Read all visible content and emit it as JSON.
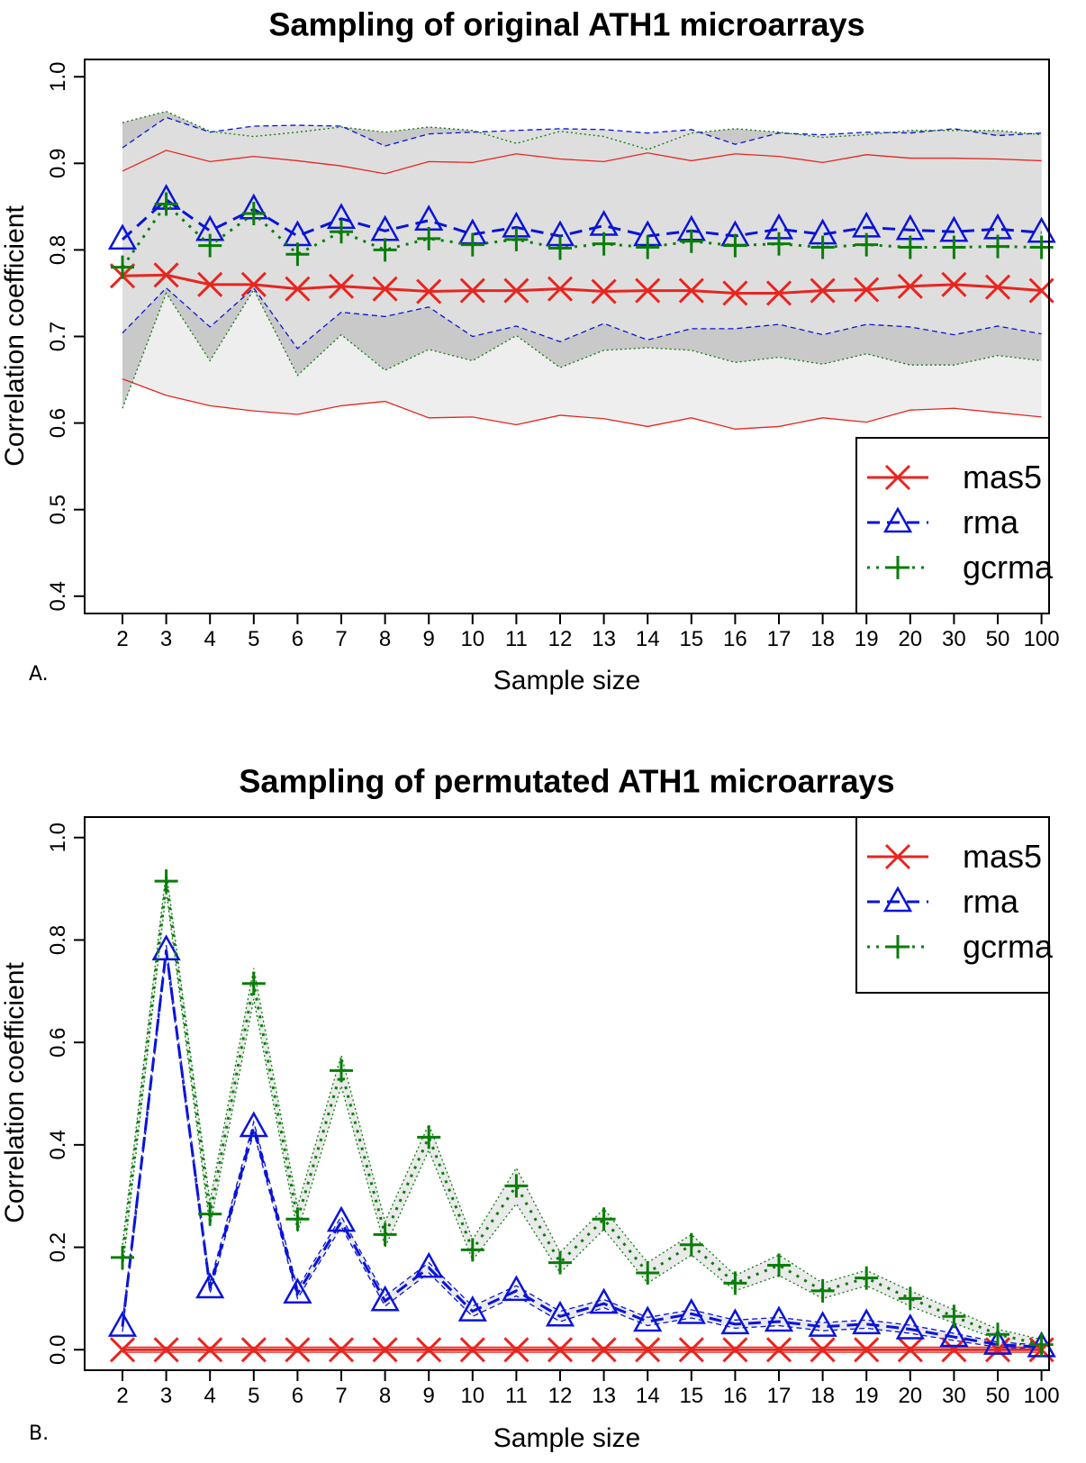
{
  "chart_data": [
    {
      "panel_label": "A.",
      "type": "line",
      "title": "Sampling of original ATH1 microarrays",
      "xlabel": "Sample size",
      "ylabel": "Correlation coefficient",
      "categories": [
        "2",
        "3",
        "4",
        "5",
        "6",
        "7",
        "8",
        "9",
        "10",
        "11",
        "12",
        "13",
        "14",
        "15",
        "16",
        "17",
        "18",
        "19",
        "20",
        "30",
        "50",
        "100"
      ],
      "ylim": [
        0.38,
        1.02
      ],
      "yticks": [
        "0.4",
        "0.5",
        "0.6",
        "0.7",
        "0.8",
        "0.9",
        "1.0"
      ],
      "legend_position": "bottom-right",
      "series": [
        {
          "name": "mas5",
          "color": "#e8251f",
          "style": "solid",
          "marker": "x",
          "values": [
            0.77,
            0.771,
            0.76,
            0.76,
            0.755,
            0.758,
            0.755,
            0.752,
            0.753,
            0.753,
            0.755,
            0.752,
            0.753,
            0.753,
            0.75,
            0.75,
            0.753,
            0.754,
            0.758,
            0.76,
            0.757,
            0.753
          ],
          "upper": [
            0.891,
            0.915,
            0.902,
            0.908,
            0.903,
            0.897,
            0.888,
            0.902,
            0.901,
            0.911,
            0.905,
            0.902,
            0.912,
            0.903,
            0.911,
            0.908,
            0.901,
            0.91,
            0.906,
            0.906,
            0.905,
            0.903
          ],
          "lower": [
            0.651,
            0.632,
            0.62,
            0.614,
            0.61,
            0.62,
            0.625,
            0.606,
            0.607,
            0.598,
            0.609,
            0.605,
            0.596,
            0.606,
            0.593,
            0.596,
            0.606,
            0.601,
            0.615,
            0.617,
            0.612,
            0.607
          ]
        },
        {
          "name": "rma",
          "color": "#0a14d8",
          "style": "dashed",
          "marker": "triangle",
          "values": [
            0.812,
            0.858,
            0.822,
            0.847,
            0.816,
            0.836,
            0.822,
            0.834,
            0.818,
            0.826,
            0.816,
            0.828,
            0.816,
            0.822,
            0.816,
            0.824,
            0.818,
            0.826,
            0.823,
            0.821,
            0.824,
            0.82
          ],
          "upper": [
            0.918,
            0.953,
            0.936,
            0.943,
            0.944,
            0.943,
            0.92,
            0.934,
            0.936,
            0.938,
            0.94,
            0.939,
            0.935,
            0.939,
            0.922,
            0.935,
            0.933,
            0.936,
            0.935,
            0.94,
            0.932,
            0.935
          ],
          "lower": [
            0.704,
            0.756,
            0.711,
            0.756,
            0.686,
            0.728,
            0.723,
            0.734,
            0.7,
            0.712,
            0.694,
            0.715,
            0.696,
            0.709,
            0.709,
            0.714,
            0.702,
            0.714,
            0.711,
            0.702,
            0.712,
            0.703
          ]
        },
        {
          "name": "gcrma",
          "color": "#0a7d0a",
          "style": "dotted",
          "marker": "plus",
          "values": [
            0.78,
            0.853,
            0.805,
            0.842,
            0.795,
            0.821,
            0.8,
            0.813,
            0.806,
            0.812,
            0.802,
            0.807,
            0.803,
            0.81,
            0.805,
            0.807,
            0.803,
            0.806,
            0.803,
            0.803,
            0.804,
            0.803
          ],
          "upper": [
            0.947,
            0.96,
            0.937,
            0.931,
            0.936,
            0.942,
            0.936,
            0.942,
            0.938,
            0.923,
            0.937,
            0.931,
            0.916,
            0.935,
            0.94,
            0.936,
            0.93,
            0.933,
            0.938,
            0.938,
            0.938,
            0.933
          ],
          "lower": [
            0.617,
            0.75,
            0.672,
            0.754,
            0.655,
            0.702,
            0.661,
            0.685,
            0.672,
            0.701,
            0.664,
            0.684,
            0.687,
            0.684,
            0.67,
            0.676,
            0.668,
            0.68,
            0.667,
            0.667,
            0.678,
            0.672
          ]
        }
      ]
    },
    {
      "panel_label": "B.",
      "type": "line",
      "title": "Sampling of permutated ATH1 microarrays",
      "xlabel": "Sample size",
      "ylabel": "Correlation coefficient",
      "categories": [
        "2",
        "3",
        "4",
        "5",
        "6",
        "7",
        "8",
        "9",
        "10",
        "11",
        "12",
        "13",
        "14",
        "15",
        "16",
        "17",
        "18",
        "19",
        "20",
        "30",
        "50",
        "100"
      ],
      "ylim": [
        -0.04,
        1.04
      ],
      "yticks": [
        "0.0",
        "0.2",
        "0.4",
        "0.6",
        "0.8",
        "1.0"
      ],
      "legend_position": "top-right",
      "series": [
        {
          "name": "mas5",
          "color": "#e8251f",
          "style": "solid",
          "marker": "x",
          "values": [
            0,
            0,
            0,
            0,
            0,
            0,
            0,
            0,
            0,
            0,
            0,
            0,
            0,
            0,
            0,
            0,
            0,
            0,
            0,
            0,
            0,
            0
          ],
          "upper": [
            0.005,
            0.005,
            0.005,
            0.005,
            0.005,
            0.005,
            0.005,
            0.005,
            0.005,
            0.005,
            0.005,
            0.005,
            0.005,
            0.005,
            0.005,
            0.005,
            0.005,
            0.005,
            0.005,
            0.005,
            0.005,
            0.005
          ],
          "lower": [
            -0.005,
            -0.005,
            -0.005,
            -0.005,
            -0.005,
            -0.005,
            -0.005,
            -0.005,
            -0.005,
            -0.005,
            -0.005,
            -0.005,
            -0.005,
            -0.005,
            -0.005,
            -0.005,
            -0.005,
            -0.005,
            -0.005,
            -0.005,
            -0.005,
            -0.005
          ]
        },
        {
          "name": "rma",
          "color": "#0a14d8",
          "style": "dashed",
          "marker": "triangle",
          "values": [
            0.045,
            0.78,
            0.12,
            0.435,
            0.11,
            0.25,
            0.095,
            0.16,
            0.075,
            0.115,
            0.065,
            0.09,
            0.055,
            0.07,
            0.05,
            0.055,
            0.045,
            0.05,
            0.04,
            0.025,
            0.01,
            0.005
          ],
          "upper": [
            0.055,
            0.79,
            0.13,
            0.445,
            0.12,
            0.26,
            0.105,
            0.17,
            0.085,
            0.125,
            0.075,
            0.098,
            0.063,
            0.078,
            0.058,
            0.063,
            0.053,
            0.058,
            0.048,
            0.032,
            0.015,
            0.009
          ],
          "lower": [
            0.035,
            0.77,
            0.11,
            0.425,
            0.1,
            0.24,
            0.085,
            0.15,
            0.065,
            0.105,
            0.055,
            0.082,
            0.047,
            0.062,
            0.042,
            0.047,
            0.037,
            0.042,
            0.032,
            0.018,
            0.005,
            0.001
          ]
        },
        {
          "name": "gcrma",
          "color": "#0a7d0a",
          "style": "dotted",
          "marker": "plus",
          "values": [
            0.18,
            0.915,
            0.265,
            0.715,
            0.255,
            0.545,
            0.225,
            0.415,
            0.195,
            0.32,
            0.17,
            0.255,
            0.15,
            0.205,
            0.13,
            0.165,
            0.115,
            0.14,
            0.1,
            0.065,
            0.03,
            0.01
          ],
          "upper": [
            0.205,
            0.935,
            0.29,
            0.745,
            0.28,
            0.575,
            0.25,
            0.44,
            0.215,
            0.355,
            0.19,
            0.275,
            0.17,
            0.225,
            0.145,
            0.185,
            0.13,
            0.155,
            0.115,
            0.078,
            0.04,
            0.02
          ],
          "lower": [
            0.155,
            0.895,
            0.24,
            0.685,
            0.23,
            0.515,
            0.2,
            0.39,
            0.175,
            0.285,
            0.15,
            0.235,
            0.13,
            0.185,
            0.115,
            0.145,
            0.1,
            0.125,
            0.085,
            0.052,
            0.02,
            0.0
          ]
        }
      ]
    }
  ]
}
